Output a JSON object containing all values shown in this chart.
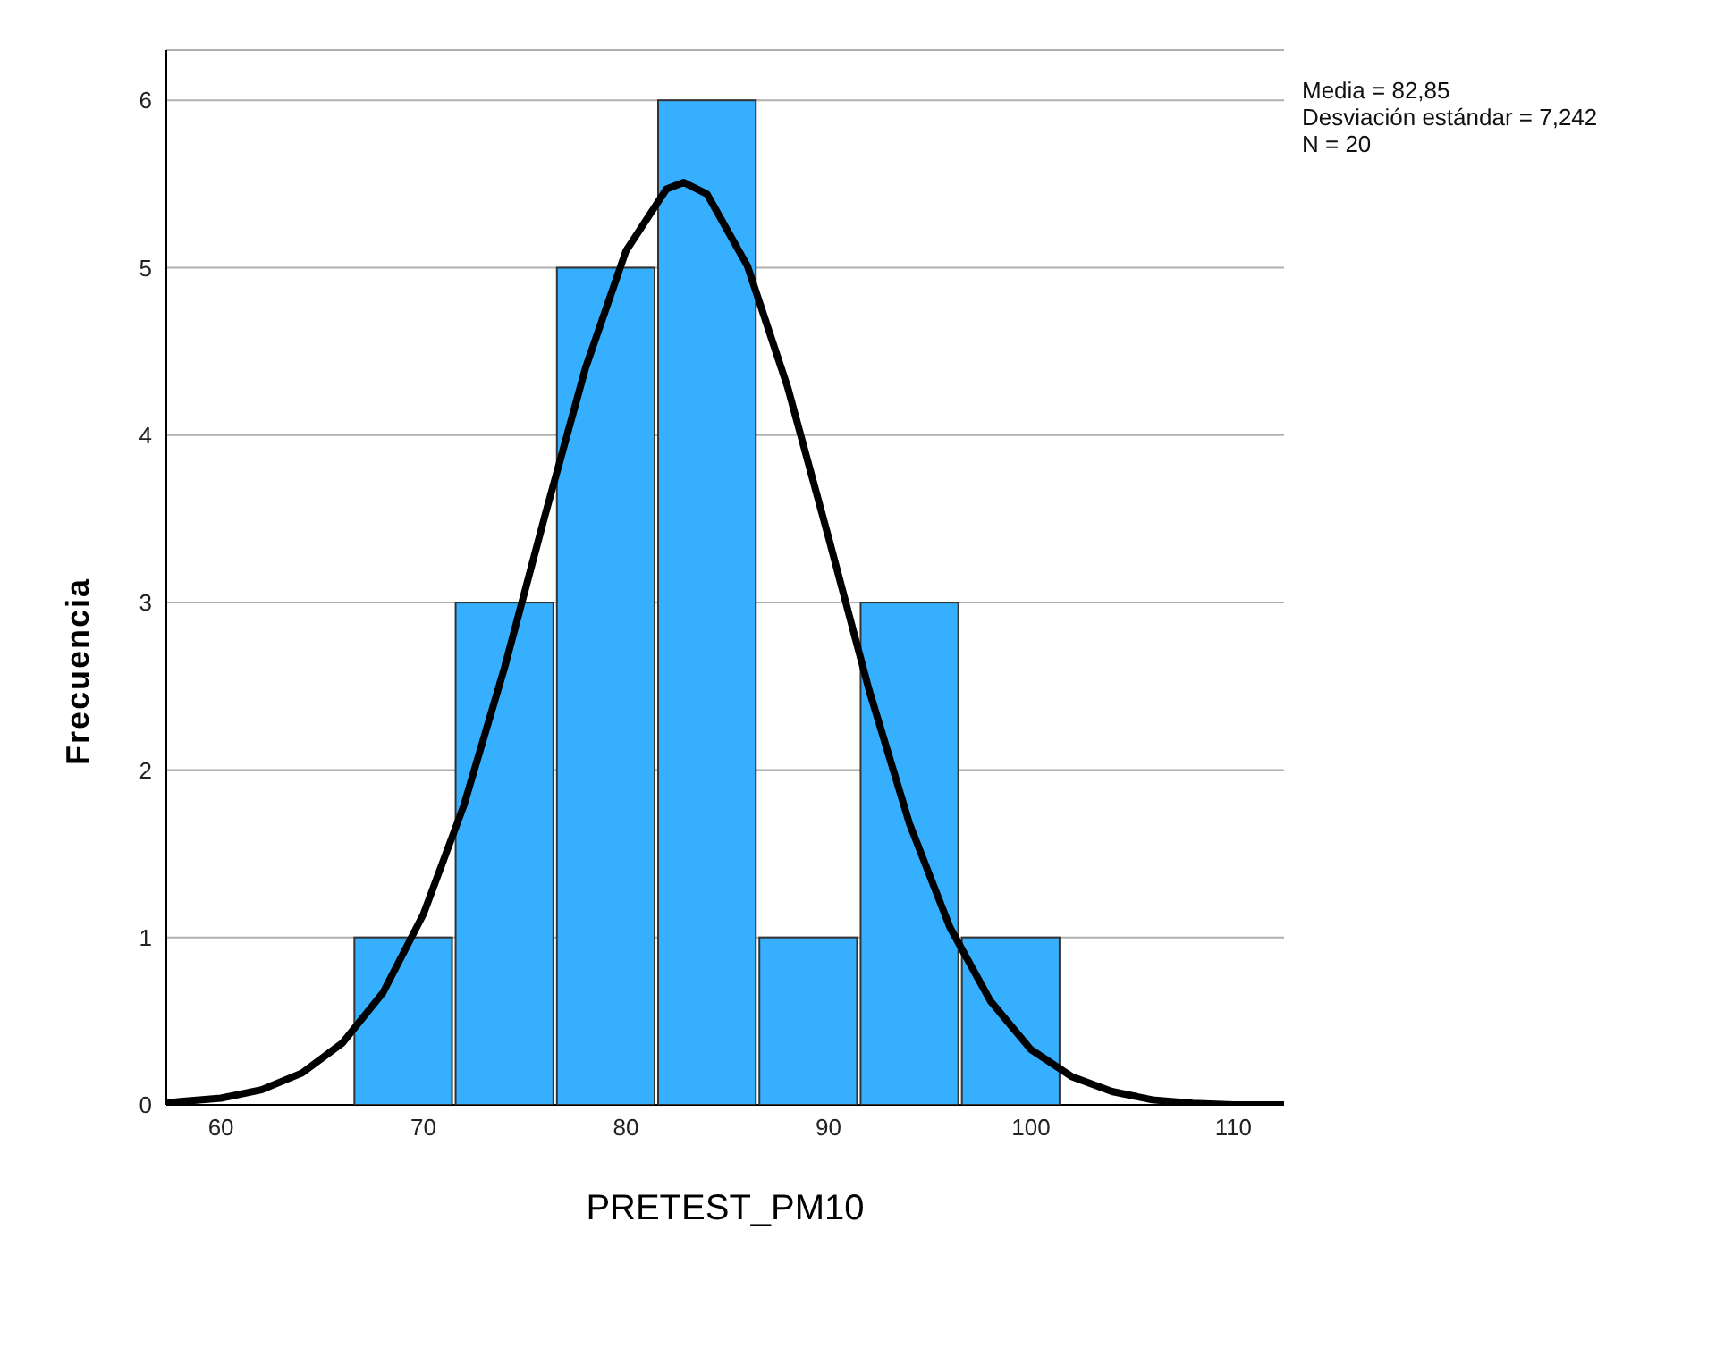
{
  "chart_data": {
    "type": "histogram",
    "xlabel": "PRETEST_PM10",
    "ylabel": "Frecuencia",
    "annotations": [
      "Media = 82,85",
      "Desviación estándar = 7,242",
      "N = 20"
    ],
    "bins": [
      66.5,
      71.5,
      76.5,
      81.5,
      86.5,
      91.5,
      96.5,
      101.5
    ],
    "values": [
      1,
      3,
      5,
      6,
      1,
      3,
      1
    ],
    "color": "#36b0fe",
    "series": [
      {
        "type": "line",
        "color": "#000000",
        "x": [
          57.3,
          58,
          60,
          62,
          64,
          66,
          68,
          70,
          72,
          74,
          76,
          78,
          80,
          82,
          82.85,
          84,
          86,
          88,
          90,
          92,
          94,
          96,
          98,
          100,
          102,
          104,
          106,
          108,
          110,
          112.5
        ],
        "values": [
          0.01,
          0.02,
          0.04,
          0.09,
          0.19,
          0.37,
          0.67,
          1.14,
          1.79,
          2.61,
          3.52,
          4.4,
          5.1,
          5.47,
          5.51,
          5.44,
          5.01,
          4.28,
          3.39,
          2.48,
          1.68,
          1.06,
          0.62,
          0.33,
          0.17,
          0.08,
          0.03,
          0.01,
          0.0,
          0.0
        ]
      }
    ],
    "xlim": [
      57.3,
      112.5
    ],
    "xticks": [
      60,
      70,
      80,
      90,
      100,
      110
    ],
    "ylim": [
      0,
      6.3
    ],
    "yticks": [
      0,
      1,
      2,
      3,
      4,
      5,
      6
    ],
    "grid": "y",
    "marker": "none",
    "line_style": "solid"
  }
}
